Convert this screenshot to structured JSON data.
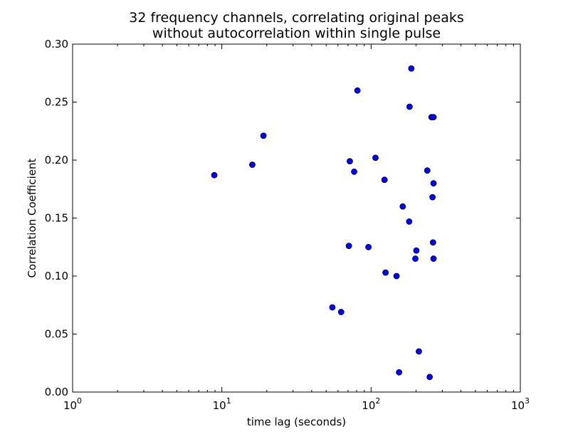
{
  "chart_data": {
    "type": "scatter",
    "title": "32 frequency channels, correlating original peaks\nwithout autocorrelation within single pulse",
    "xlabel": "time lag (seconds)",
    "ylabel": "Correlation Coefficient",
    "xscale": "log",
    "xlim": [
      1,
      1000
    ],
    "ylim": [
      0.0,
      0.3
    ],
    "x_ticks": [
      {
        "base": "10",
        "exp": "0",
        "value": 1
      },
      {
        "base": "10",
        "exp": "1",
        "value": 10
      },
      {
        "base": "10",
        "exp": "2",
        "value": 100
      },
      {
        "base": "10",
        "exp": "3",
        "value": 1000
      }
    ],
    "y_ticks": [
      "0.00",
      "0.05",
      "0.10",
      "0.15",
      "0.20",
      "0.25",
      "0.30"
    ],
    "grid": false,
    "marker_color": "#0000ff",
    "marker_edge": "#000000",
    "points": [
      {
        "x": 8.9,
        "y": 0.187
      },
      {
        "x": 16,
        "y": 0.196
      },
      {
        "x": 19,
        "y": 0.221
      },
      {
        "x": 55,
        "y": 0.073
      },
      {
        "x": 63,
        "y": 0.069
      },
      {
        "x": 71,
        "y": 0.126
      },
      {
        "x": 72,
        "y": 0.199
      },
      {
        "x": 77,
        "y": 0.19
      },
      {
        "x": 81,
        "y": 0.26
      },
      {
        "x": 96,
        "y": 0.125
      },
      {
        "x": 107,
        "y": 0.202
      },
      {
        "x": 123,
        "y": 0.183
      },
      {
        "x": 125,
        "y": 0.103
      },
      {
        "x": 148,
        "y": 0.1
      },
      {
        "x": 154,
        "y": 0.017
      },
      {
        "x": 163,
        "y": 0.16
      },
      {
        "x": 180,
        "y": 0.147
      },
      {
        "x": 181,
        "y": 0.246
      },
      {
        "x": 186,
        "y": 0.279
      },
      {
        "x": 198,
        "y": 0.115
      },
      {
        "x": 201,
        "y": 0.122
      },
      {
        "x": 209,
        "y": 0.035
      },
      {
        "x": 238,
        "y": 0.191
      },
      {
        "x": 247,
        "y": 0.013
      },
      {
        "x": 254,
        "y": 0.237
      },
      {
        "x": 258,
        "y": 0.168
      },
      {
        "x": 260,
        "y": 0.129
      },
      {
        "x": 262,
        "y": 0.237
      },
      {
        "x": 262,
        "y": 0.18
      },
      {
        "x": 262,
        "y": 0.115
      }
    ]
  }
}
